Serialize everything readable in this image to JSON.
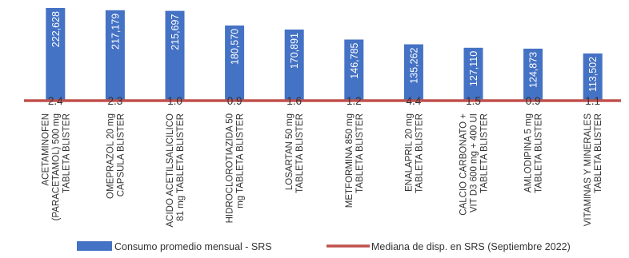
{
  "chart_data": {
    "type": "bar",
    "title": "",
    "xlabel": "",
    "ylabel": "",
    "grid": false,
    "legend_position": "bottom",
    "categories": [
      [
        "ACETAMINOFEN",
        "(PARACETAMOL)  500 mg",
        "TABLETA  BLISTER"
      ],
      [
        "OMEPRAZOL  20 mg",
        "CAPSULA  BLISTER"
      ],
      [
        "ACIDO ACETILSALICILICO",
        "81 mg  TABLETA  BLISTER"
      ],
      [
        "HIDROCLOROTIAZIDA  50",
        "mg  TABLETA  BLISTER"
      ],
      [
        "LOSARTAN  50 mg",
        "TABLETA  BLISTER"
      ],
      [
        "METFORMINA  850 mg",
        "TABLETA  BLISTER"
      ],
      [
        "ENALAPRIL  20 mg",
        "TABLETA  BLISTER"
      ],
      [
        "CALCIO CARBONATO +",
        "VIT D3  600 mg + 400 UI",
        "TABLETA  BLISTER"
      ],
      [
        "AMLODIPINA  5 mg",
        "TABLETA  BLISTER"
      ],
      [
        "VITAMINAS Y MINERALES",
        "TABLETA  BLISTER"
      ]
    ],
    "series": [
      {
        "name": "Consumo promedio mensual - SRS",
        "color": "#4472C4",
        "values": [
          222628,
          217179,
          215697,
          180570,
          170891,
          146785,
          135262,
          127110,
          124873,
          113502
        ],
        "labels": [
          "222,628",
          "217,179",
          "215,697",
          "180,570",
          "170,891",
          "146,785",
          "135,262",
          "127,110",
          "124,873",
          "113,502"
        ]
      },
      {
        "name": "Mediana de disp. en SRS (Septiembre 2022)",
        "color": "#C0504D",
        "values": [
          2.4,
          2.3,
          1.0,
          0.9,
          1.6,
          1.2,
          4.4,
          1.5,
          0.9,
          1.1
        ],
        "labels": [
          "2.4",
          "2.3",
          "1.0",
          "0.9",
          "1.6",
          "1.2",
          "4.4",
          "1.5",
          "0.9",
          "1.1"
        ]
      }
    ]
  }
}
